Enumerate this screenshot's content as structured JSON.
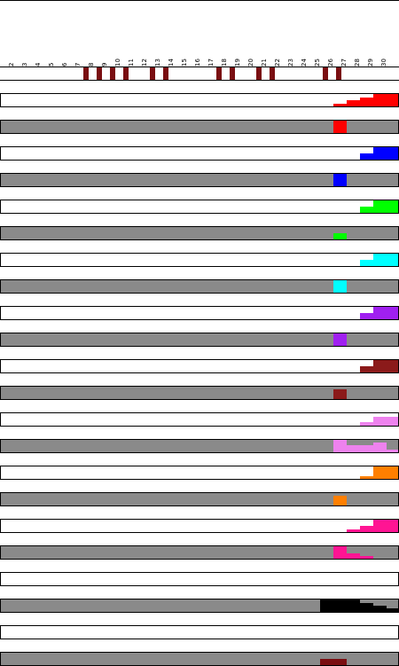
{
  "days": [
    "1",
    "2",
    "3",
    "4",
    "5",
    "6",
    "7",
    "8",
    "9",
    "10",
    "11",
    "12",
    "13",
    "14",
    "15",
    "16",
    "17",
    "18",
    "19",
    "20",
    "21",
    "22",
    "23",
    "24",
    "25",
    "26",
    "27",
    "28",
    "29",
    "30"
  ],
  "marked_days": [
    7,
    8,
    9,
    10,
    12,
    13,
    17,
    18,
    20,
    21,
    25,
    26
  ],
  "marker_color": "#7a0e11",
  "rows": [
    {
      "id": "red-detail",
      "style": "white",
      "color": "#ff0000",
      "cells": [
        [
          26,
          0.2
        ],
        [
          27,
          0.5
        ],
        [
          28,
          0.7
        ],
        [
          29,
          1
        ],
        [
          30,
          1
        ]
      ]
    },
    {
      "id": "red-summary",
      "style": "gray",
      "color": "#ff0000",
      "cells": [
        [
          26,
          1
        ]
      ]
    },
    {
      "id": "blue-detail",
      "style": "white",
      "color": "#0000ff",
      "cells": [
        [
          28,
          0.5
        ],
        [
          29,
          1
        ],
        [
          30,
          1
        ]
      ]
    },
    {
      "id": "blue-summary",
      "style": "gray",
      "color": "#0000ff",
      "cells": [
        [
          26,
          1
        ]
      ]
    },
    {
      "id": "green-detail",
      "style": "white",
      "color": "#00ff00",
      "cells": [
        [
          28,
          0.5
        ],
        [
          29,
          1
        ],
        [
          30,
          1
        ]
      ]
    },
    {
      "id": "green-summary",
      "style": "gray",
      "color": "#00ff00",
      "cells": [
        [
          26,
          0.5
        ]
      ]
    },
    {
      "id": "cyan-detail",
      "style": "white",
      "color": "#00ffff",
      "cells": [
        [
          28,
          0.5
        ],
        [
          29,
          1
        ],
        [
          30,
          1
        ]
      ]
    },
    {
      "id": "cyan-summary",
      "style": "gray",
      "color": "#00ffff",
      "cells": [
        [
          26,
          1
        ]
      ]
    },
    {
      "id": "purple-detail",
      "style": "white",
      "color": "#a020f0",
      "cells": [
        [
          28,
          0.5
        ],
        [
          29,
          1
        ],
        [
          30,
          1
        ]
      ]
    },
    {
      "id": "purple-summary",
      "style": "gray",
      "color": "#a020f0",
      "cells": [
        [
          26,
          1
        ]
      ]
    },
    {
      "id": "maroon-detail",
      "style": "white",
      "color": "#8b1a1a",
      "cells": [
        [
          28,
          0.5
        ],
        [
          29,
          1
        ],
        [
          30,
          1
        ]
      ]
    },
    {
      "id": "maroon-summary",
      "style": "gray",
      "color": "#8b1a1a",
      "cells": [
        [
          26,
          0.8
        ]
      ]
    },
    {
      "id": "pink-detail",
      "style": "white",
      "color": "#ee82ee",
      "cells": [
        [
          28,
          0.3
        ],
        [
          29,
          0.7
        ],
        [
          30,
          0.7
        ]
      ]
    },
    {
      "id": "pink-summary",
      "style": "gray",
      "color": "#ee82ee",
      "cells": [
        [
          26,
          1
        ],
        [
          27,
          0.6
        ],
        [
          28,
          0.6
        ],
        [
          29,
          0.8
        ],
        [
          30,
          0.2
        ]
      ]
    },
    {
      "id": "orange-detail",
      "style": "white",
      "color": "#ff7f00",
      "cells": [
        [
          28,
          0.2
        ],
        [
          29,
          1
        ],
        [
          30,
          1
        ]
      ]
    },
    {
      "id": "orange-summary",
      "style": "gray",
      "color": "#ff7f00",
      "cells": [
        [
          26,
          0.8
        ]
      ]
    },
    {
      "id": "deeppink-detail",
      "style": "white",
      "color": "#ff1493",
      "cells": [
        [
          27,
          0.2
        ],
        [
          28,
          0.5
        ],
        [
          29,
          1
        ],
        [
          30,
          1
        ]
      ]
    },
    {
      "id": "deeppink-summary",
      "style": "gray",
      "color": "#ff1493",
      "cells": [
        [
          26,
          1
        ],
        [
          27,
          0.4
        ],
        [
          28,
          0.2
        ]
      ]
    },
    {
      "id": "empty-detail",
      "style": "white",
      "color": "#000000",
      "cells": []
    },
    {
      "id": "black-summary",
      "style": "gray",
      "color": "#000000",
      "cells": [
        [
          25,
          1
        ],
        [
          26,
          1
        ],
        [
          27,
          1
        ],
        [
          28,
          0.7
        ],
        [
          29,
          0.5
        ],
        [
          30,
          0.3
        ]
      ]
    },
    {
      "id": "empty-detail-2",
      "style": "white",
      "color": "#000000",
      "cells": []
    },
    {
      "id": "darkred-summary",
      "style": "gray",
      "color": "#7a0e11",
      "cells": [
        [
          25,
          0.5
        ],
        [
          26,
          0.5
        ]
      ]
    }
  ]
}
